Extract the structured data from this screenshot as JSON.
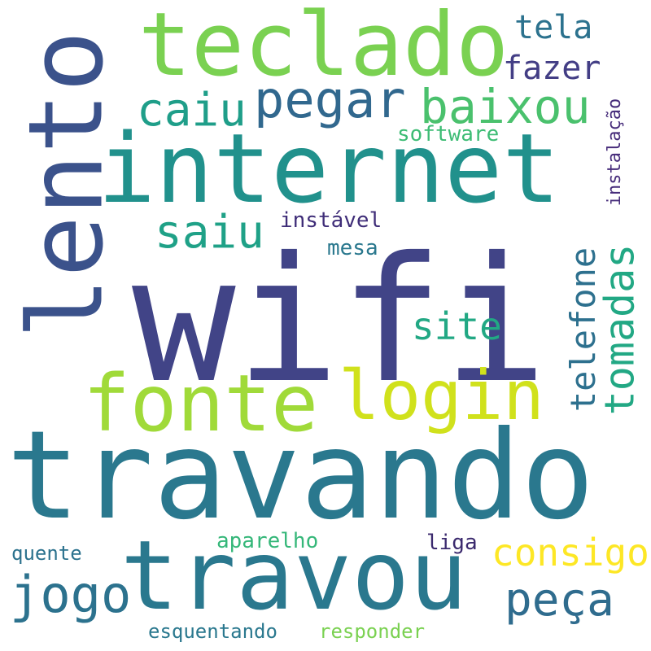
{
  "words": [
    {
      "id": "wifi",
      "text": "wifi",
      "color": "#414487"
    },
    {
      "id": "travando",
      "text": "travando",
      "color": "#2a788e"
    },
    {
      "id": "internet",
      "text": "internet",
      "color": "#21918c"
    },
    {
      "id": "lento",
      "text": "lento",
      "color": "#3b528b"
    },
    {
      "id": "teclado",
      "text": "teclado",
      "color": "#7ad151"
    },
    {
      "id": "travou",
      "text": "travou",
      "color": "#2a788e"
    },
    {
      "id": "fonte",
      "text": "fonte",
      "color": "#a0da39"
    },
    {
      "id": "login",
      "text": "login",
      "color": "#d0e11c"
    },
    {
      "id": "pegar",
      "text": "pegar",
      "color": "#31688e"
    },
    {
      "id": "baixou",
      "text": "baixou",
      "color": "#4ac16d"
    },
    {
      "id": "caiu",
      "text": "caiu",
      "color": "#1f9e89"
    },
    {
      "id": "saiu",
      "text": "saiu",
      "color": "#1fa187"
    },
    {
      "id": "tomadas",
      "text": "tomadas",
      "color": "#22a884"
    },
    {
      "id": "jogo",
      "text": "jogo",
      "color": "#2c728e"
    },
    {
      "id": "peca",
      "text": "peça",
      "color": "#2f6c8e"
    },
    {
      "id": "consigo",
      "text": "consigo",
      "color": "#fde725"
    },
    {
      "id": "telefone",
      "text": "telefone",
      "color": "#2d708e"
    },
    {
      "id": "site",
      "text": "site",
      "color": "#22a884"
    },
    {
      "id": "fazer",
      "text": "fazer",
      "color": "#433e85"
    },
    {
      "id": "tela",
      "text": "tela",
      "color": "#2c728e"
    },
    {
      "id": "software",
      "text": "software",
      "color": "#3dbc74"
    },
    {
      "id": "instalacao",
      "text": "instalação",
      "color": "#472d7b"
    },
    {
      "id": "instavel",
      "text": "instável",
      "color": "#3f2d78"
    },
    {
      "id": "mesa",
      "text": "mesa",
      "color": "#2a788e"
    },
    {
      "id": "aparelho",
      "text": "aparelho",
      "color": "#35b779"
    },
    {
      "id": "liga",
      "text": "liga",
      "color": "#3b2a6e"
    },
    {
      "id": "quente",
      "text": "quente",
      "color": "#2c728e"
    },
    {
      "id": "esquentando",
      "text": "esquentando",
      "color": "#2a788e"
    },
    {
      "id": "responder",
      "text": "responder",
      "color": "#7ad151"
    }
  ]
}
